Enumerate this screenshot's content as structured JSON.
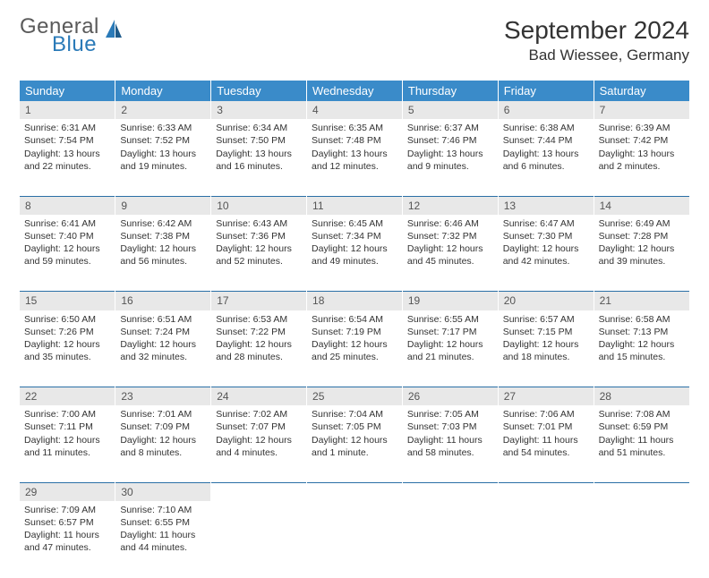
{
  "logo": {
    "general": "General",
    "blue": "Blue"
  },
  "title": "September 2024",
  "location": "Bad Wiessee, Germany",
  "colors": {
    "header_bg": "#3a8bc9",
    "daynum_bg": "#e8e8e8",
    "rule": "#2a6fa6",
    "logo_gray": "#5a5a5a",
    "logo_blue": "#2a7ab8"
  },
  "day_names": [
    "Sunday",
    "Monday",
    "Tuesday",
    "Wednesday",
    "Thursday",
    "Friday",
    "Saturday"
  ],
  "weeks": [
    [
      {
        "n": "1",
        "sr": "6:31 AM",
        "ss": "7:54 PM",
        "dl": "13 hours and 22 minutes."
      },
      {
        "n": "2",
        "sr": "6:33 AM",
        "ss": "7:52 PM",
        "dl": "13 hours and 19 minutes."
      },
      {
        "n": "3",
        "sr": "6:34 AM",
        "ss": "7:50 PM",
        "dl": "13 hours and 16 minutes."
      },
      {
        "n": "4",
        "sr": "6:35 AM",
        "ss": "7:48 PM",
        "dl": "13 hours and 12 minutes."
      },
      {
        "n": "5",
        "sr": "6:37 AM",
        "ss": "7:46 PM",
        "dl": "13 hours and 9 minutes."
      },
      {
        "n": "6",
        "sr": "6:38 AM",
        "ss": "7:44 PM",
        "dl": "13 hours and 6 minutes."
      },
      {
        "n": "7",
        "sr": "6:39 AM",
        "ss": "7:42 PM",
        "dl": "13 hours and 2 minutes."
      }
    ],
    [
      {
        "n": "8",
        "sr": "6:41 AM",
        "ss": "7:40 PM",
        "dl": "12 hours and 59 minutes."
      },
      {
        "n": "9",
        "sr": "6:42 AM",
        "ss": "7:38 PM",
        "dl": "12 hours and 56 minutes."
      },
      {
        "n": "10",
        "sr": "6:43 AM",
        "ss": "7:36 PM",
        "dl": "12 hours and 52 minutes."
      },
      {
        "n": "11",
        "sr": "6:45 AM",
        "ss": "7:34 PM",
        "dl": "12 hours and 49 minutes."
      },
      {
        "n": "12",
        "sr": "6:46 AM",
        "ss": "7:32 PM",
        "dl": "12 hours and 45 minutes."
      },
      {
        "n": "13",
        "sr": "6:47 AM",
        "ss": "7:30 PM",
        "dl": "12 hours and 42 minutes."
      },
      {
        "n": "14",
        "sr": "6:49 AM",
        "ss": "7:28 PM",
        "dl": "12 hours and 39 minutes."
      }
    ],
    [
      {
        "n": "15",
        "sr": "6:50 AM",
        "ss": "7:26 PM",
        "dl": "12 hours and 35 minutes."
      },
      {
        "n": "16",
        "sr": "6:51 AM",
        "ss": "7:24 PM",
        "dl": "12 hours and 32 minutes."
      },
      {
        "n": "17",
        "sr": "6:53 AM",
        "ss": "7:22 PM",
        "dl": "12 hours and 28 minutes."
      },
      {
        "n": "18",
        "sr": "6:54 AM",
        "ss": "7:19 PM",
        "dl": "12 hours and 25 minutes."
      },
      {
        "n": "19",
        "sr": "6:55 AM",
        "ss": "7:17 PM",
        "dl": "12 hours and 21 minutes."
      },
      {
        "n": "20",
        "sr": "6:57 AM",
        "ss": "7:15 PM",
        "dl": "12 hours and 18 minutes."
      },
      {
        "n": "21",
        "sr": "6:58 AM",
        "ss": "7:13 PM",
        "dl": "12 hours and 15 minutes."
      }
    ],
    [
      {
        "n": "22",
        "sr": "7:00 AM",
        "ss": "7:11 PM",
        "dl": "12 hours and 11 minutes."
      },
      {
        "n": "23",
        "sr": "7:01 AM",
        "ss": "7:09 PM",
        "dl": "12 hours and 8 minutes."
      },
      {
        "n": "24",
        "sr": "7:02 AM",
        "ss": "7:07 PM",
        "dl": "12 hours and 4 minutes."
      },
      {
        "n": "25",
        "sr": "7:04 AM",
        "ss": "7:05 PM",
        "dl": "12 hours and 1 minute."
      },
      {
        "n": "26",
        "sr": "7:05 AM",
        "ss": "7:03 PM",
        "dl": "11 hours and 58 minutes."
      },
      {
        "n": "27",
        "sr": "7:06 AM",
        "ss": "7:01 PM",
        "dl": "11 hours and 54 minutes."
      },
      {
        "n": "28",
        "sr": "7:08 AM",
        "ss": "6:59 PM",
        "dl": "11 hours and 51 minutes."
      }
    ],
    [
      {
        "n": "29",
        "sr": "7:09 AM",
        "ss": "6:57 PM",
        "dl": "11 hours and 47 minutes."
      },
      {
        "n": "30",
        "sr": "7:10 AM",
        "ss": "6:55 PM",
        "dl": "11 hours and 44 minutes."
      },
      null,
      null,
      null,
      null,
      null
    ]
  ],
  "labels": {
    "sunrise": "Sunrise:",
    "sunset": "Sunset:",
    "daylight": "Daylight:"
  }
}
